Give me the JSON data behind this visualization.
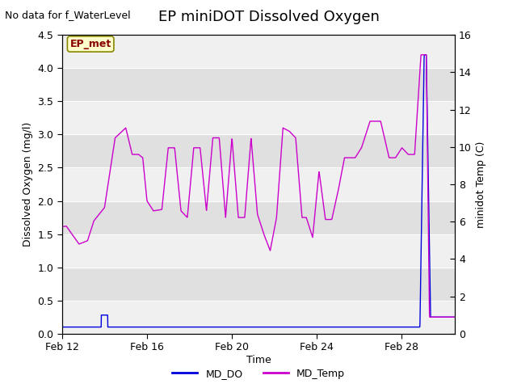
{
  "title": "EP miniDOT Dissolved Oxygen",
  "top_left_text": "No data for f_WaterLevel",
  "xlabel": "Time",
  "ylabel_left": "Dissolved Oxygen (mg/l)",
  "ylabel_right": "minidot Temp (C)",
  "ylim_left": [
    0,
    4.5
  ],
  "ylim_right": [
    0,
    16
  ],
  "yticks_left": [
    0.0,
    0.5,
    1.0,
    1.5,
    2.0,
    2.5,
    3.0,
    3.5,
    4.0,
    4.5
  ],
  "yticks_right": [
    0,
    2,
    4,
    6,
    8,
    10,
    12,
    14,
    16
  ],
  "xtick_labels": [
    "Feb 12",
    "Feb 16",
    "Feb 20",
    "Feb 24",
    "Feb 28"
  ],
  "xtick_pos": [
    0,
    4,
    8,
    12,
    16
  ],
  "xlim": [
    0,
    18.5
  ],
  "legend_labels": [
    "MD_DO",
    "MD_Temp"
  ],
  "legend_colors": [
    "#0000dd",
    "#cc00cc"
  ],
  "fig_bg_color": "#ffffff",
  "plot_bg_color": "#ffffff",
  "band_light": "#f0f0f0",
  "band_dark": "#e0e0e0",
  "ep_met_box_color": "#ffffcc",
  "ep_met_text_color": "#880000",
  "ep_met_border_color": "#888800",
  "title_fontsize": 13,
  "axis_label_fontsize": 9,
  "tick_fontsize": 9,
  "annotation_fontsize": 9,
  "waypoints_t": [
    0,
    0.2,
    0.8,
    1.2,
    1.5,
    2.0,
    2.5,
    3.0,
    3.3,
    3.6,
    3.8,
    4.0,
    4.3,
    4.7,
    5.0,
    5.3,
    5.6,
    5.9,
    6.2,
    6.5,
    6.8,
    7.1,
    7.4,
    7.7,
    8.0,
    8.3,
    8.6,
    8.9,
    9.2,
    9.5,
    9.8,
    10.1,
    10.4,
    10.7,
    11.0,
    11.3,
    11.5,
    11.8,
    12.1,
    12.4,
    12.7,
    13.0,
    13.3,
    13.5,
    13.8,
    14.1,
    14.5,
    15.0,
    15.4,
    15.7,
    16.0,
    16.3,
    16.6,
    16.9,
    17.0,
    17.15,
    17.3,
    17.5,
    18.0,
    18.5
  ],
  "waypoints_do": [
    1.61,
    1.62,
    1.35,
    1.4,
    1.7,
    1.9,
    2.95,
    3.1,
    2.7,
    2.7,
    2.65,
    2.0,
    1.85,
    1.87,
    2.8,
    2.8,
    1.85,
    1.75,
    2.8,
    2.8,
    1.85,
    2.95,
    2.95,
    1.75,
    2.95,
    1.75,
    1.75,
    2.95,
    1.8,
    1.5,
    1.25,
    1.75,
    3.1,
    3.05,
    2.95,
    1.75,
    1.75,
    1.45,
    2.45,
    1.72,
    1.72,
    2.15,
    2.65,
    2.65,
    2.65,
    2.8,
    3.2,
    3.2,
    2.65,
    2.65,
    2.8,
    2.7,
    2.7,
    4.2,
    4.2,
    4.2,
    0.25,
    0.25,
    0.25,
    0.25
  ],
  "md_do_base": 0.1,
  "md_do_spike1_t": [
    1.8,
    2.1
  ],
  "md_do_spike1_val": 0.28,
  "md_do_spike2_t": [
    16.85,
    17.05,
    17.15,
    17.35
  ],
  "md_do_spike2_val": [
    0.1,
    4.2,
    4.2,
    0.25
  ]
}
